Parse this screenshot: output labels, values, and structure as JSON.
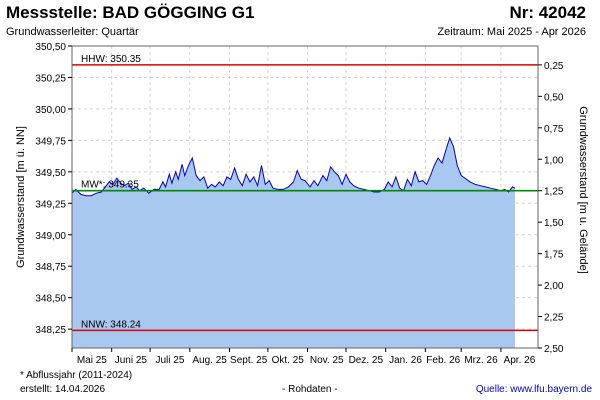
{
  "header": {
    "title": "Messstelle: BAD GÖGGING G1",
    "nr": "Nr: 42042",
    "aquifer": "Grundwasserleiter: Quartär",
    "period": "Zeitraum: Mai 2025 - Apr 2026"
  },
  "footer": {
    "note": "* Abflussjahr (2011-2024)",
    "created": "erstellt:  14.04.2026",
    "raw": "- Rohdaten -",
    "source": "Quelle: www.lfu.bayern.de"
  },
  "chart_data": {
    "type": "area",
    "y_left": {
      "label": "Grundwasserstand [m ü. NN]",
      "range": [
        348.1,
        350.5
      ],
      "ticks": [
        348.25,
        348.5,
        348.75,
        349.0,
        349.25,
        349.5,
        349.75,
        350.0,
        350.25,
        350.5
      ],
      "tick_labels": [
        "348,25",
        "348,50",
        "348,75",
        "349,00",
        "349,25",
        "349,50",
        "349,75",
        "350,00",
        "350,25",
        "350,50"
      ]
    },
    "y_right": {
      "label": "Grundwasserstand [m u. Gelände]",
      "ticks": [
        0.25,
        0.5,
        0.75,
        1.0,
        1.25,
        1.5,
        1.75,
        2.0,
        2.25,
        2.5
      ],
      "tick_labels": [
        "0,25",
        "0,50",
        "0,75",
        "1,00",
        "1,25",
        "1,50",
        "1,75",
        "2,00",
        "2,25",
        "2,50"
      ],
      "offset": 350.6
    },
    "x": {
      "range": [
        "2025-05-01",
        "2026-04-30"
      ],
      "month_ticks": [
        "2025-05-01",
        "2025-06-01",
        "2025-07-01",
        "2025-08-01",
        "2025-09-01",
        "2025-10-01",
        "2025-11-01",
        "2025-12-01",
        "2026-01-01",
        "2026-02-01",
        "2026-03-01",
        "2026-04-01"
      ],
      "tick_labels": [
        "Mai 25",
        "Juni 25",
        "Juli 25",
        "Aug. 25",
        "Sept. 25",
        "Okt. 25",
        "Nov. 25",
        "Dez. 25",
        "Jan. 26",
        "Feb. 26",
        "Mrz. 26",
        "Apr. 26"
      ]
    },
    "reference_lines": [
      {
        "label": "HHW: 350.35",
        "value": 350.35,
        "color": "#dd0000"
      },
      {
        "label": "MW*: 349.35",
        "value": 349.35,
        "color": "#008800"
      },
      {
        "label": "NNW: 348.24",
        "value": 348.24,
        "color": "#dd0000"
      }
    ],
    "series": [
      {
        "line_color": "#0000cc",
        "fill_color": "#a8c8f0",
        "points": [
          [
            "2025-05-01",
            349.33
          ],
          [
            "2025-05-04",
            349.36
          ],
          [
            "2025-05-08",
            349.32
          ],
          [
            "2025-05-12",
            349.31
          ],
          [
            "2025-05-16",
            349.31
          ],
          [
            "2025-05-20",
            349.33
          ],
          [
            "2025-05-24",
            349.34
          ],
          [
            "2025-05-27",
            349.38
          ],
          [
            "2025-05-30",
            349.42
          ],
          [
            "2025-06-02",
            349.4
          ],
          [
            "2025-06-05",
            349.45
          ],
          [
            "2025-06-08",
            349.41
          ],
          [
            "2025-06-11",
            349.39
          ],
          [
            "2025-06-14",
            349.41
          ],
          [
            "2025-06-17",
            349.36
          ],
          [
            "2025-06-20",
            349.38
          ],
          [
            "2025-06-23",
            349.35
          ],
          [
            "2025-06-26",
            349.37
          ],
          [
            "2025-06-30",
            349.33
          ],
          [
            "2025-07-04",
            349.36
          ],
          [
            "2025-07-08",
            349.36
          ],
          [
            "2025-07-11",
            349.42
          ],
          [
            "2025-07-13",
            349.38
          ],
          [
            "2025-07-16",
            349.48
          ],
          [
            "2025-07-18",
            349.41
          ],
          [
            "2025-07-21",
            349.5
          ],
          [
            "2025-07-23",
            349.44
          ],
          [
            "2025-07-26",
            349.56
          ],
          [
            "2025-07-28",
            349.47
          ],
          [
            "2025-07-31",
            349.55
          ],
          [
            "2025-08-03",
            349.61
          ],
          [
            "2025-08-06",
            349.47
          ],
          [
            "2025-08-09",
            349.43
          ],
          [
            "2025-08-12",
            349.46
          ],
          [
            "2025-08-15",
            349.37
          ],
          [
            "2025-08-18",
            349.4
          ],
          [
            "2025-08-21",
            349.38
          ],
          [
            "2025-08-24",
            349.42
          ],
          [
            "2025-08-27",
            349.39
          ],
          [
            "2025-08-30",
            349.46
          ],
          [
            "2025-09-02",
            349.44
          ],
          [
            "2025-09-05",
            349.53
          ],
          [
            "2025-09-08",
            349.44
          ],
          [
            "2025-09-11",
            349.39
          ],
          [
            "2025-09-14",
            349.48
          ],
          [
            "2025-09-17",
            349.42
          ],
          [
            "2025-09-20",
            349.46
          ],
          [
            "2025-09-23",
            349.39
          ],
          [
            "2025-09-26",
            349.55
          ],
          [
            "2025-09-29",
            349.4
          ],
          [
            "2025-10-02",
            349.43
          ],
          [
            "2025-10-05",
            349.37
          ],
          [
            "2025-10-09",
            349.36
          ],
          [
            "2025-10-13",
            349.36
          ],
          [
            "2025-10-17",
            349.38
          ],
          [
            "2025-10-21",
            349.42
          ],
          [
            "2025-10-24",
            349.51
          ],
          [
            "2025-10-27",
            349.44
          ],
          [
            "2025-10-30",
            349.43
          ],
          [
            "2025-11-03",
            349.38
          ],
          [
            "2025-11-06",
            349.43
          ],
          [
            "2025-11-09",
            349.39
          ],
          [
            "2025-11-13",
            349.47
          ],
          [
            "2025-11-16",
            349.43
          ],
          [
            "2025-11-19",
            349.54
          ],
          [
            "2025-11-22",
            349.5
          ],
          [
            "2025-11-25",
            349.47
          ],
          [
            "2025-11-28",
            349.4
          ],
          [
            "2025-12-01",
            349.48
          ],
          [
            "2025-12-04",
            349.42
          ],
          [
            "2025-12-07",
            349.39
          ],
          [
            "2025-12-11",
            349.37
          ],
          [
            "2025-12-15",
            349.36
          ],
          [
            "2025-12-19",
            349.35
          ],
          [
            "2025-12-23",
            349.34
          ],
          [
            "2025-12-27",
            349.34
          ],
          [
            "2025-12-31",
            349.36
          ],
          [
            "2026-01-03",
            349.42
          ],
          [
            "2026-01-06",
            349.38
          ],
          [
            "2026-01-09",
            349.46
          ],
          [
            "2026-01-12",
            349.37
          ],
          [
            "2026-01-15",
            349.35
          ],
          [
            "2026-01-18",
            349.44
          ],
          [
            "2026-01-21",
            349.39
          ],
          [
            "2026-01-24",
            349.5
          ],
          [
            "2026-01-27",
            349.42
          ],
          [
            "2026-01-30",
            349.43
          ],
          [
            "2026-02-02",
            349.4
          ],
          [
            "2026-02-05",
            349.47
          ],
          [
            "2026-02-08",
            349.55
          ],
          [
            "2026-02-11",
            349.61
          ],
          [
            "2026-02-14",
            349.57
          ],
          [
            "2026-02-17",
            349.67
          ],
          [
            "2026-02-20",
            349.77
          ],
          [
            "2026-02-23",
            349.7
          ],
          [
            "2026-02-26",
            349.55
          ],
          [
            "2026-03-01",
            349.47
          ],
          [
            "2026-03-04",
            349.45
          ],
          [
            "2026-03-08",
            349.42
          ],
          [
            "2026-03-12",
            349.4
          ],
          [
            "2026-03-16",
            349.39
          ],
          [
            "2026-03-20",
            349.38
          ],
          [
            "2026-03-24",
            349.37
          ],
          [
            "2026-03-28",
            349.36
          ],
          [
            "2026-04-01",
            349.35
          ],
          [
            "2026-04-04",
            349.36
          ],
          [
            "2026-04-07",
            349.34
          ],
          [
            "2026-04-10",
            349.38
          ],
          [
            "2026-04-12",
            349.37
          ]
        ]
      }
    ]
  }
}
